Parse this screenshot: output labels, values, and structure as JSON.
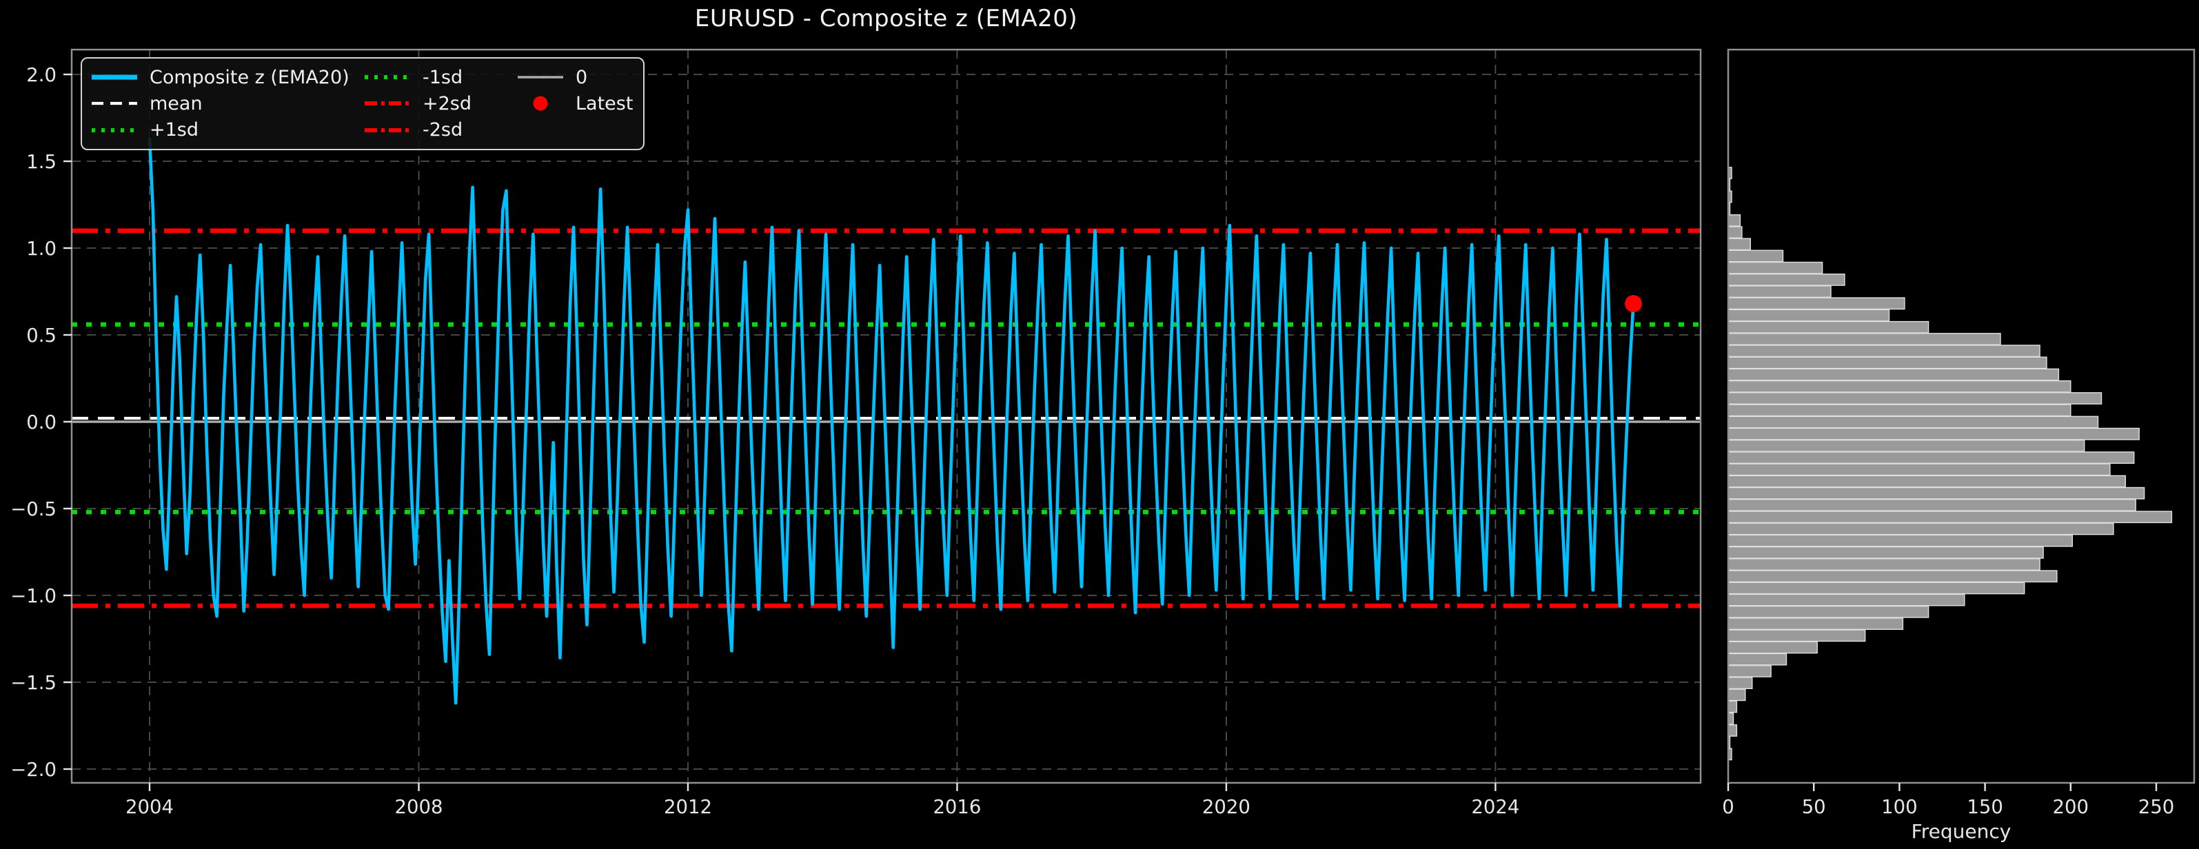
{
  "title": "EURUSD - Composite z (EMA20)",
  "colors": {
    "background": "#000000",
    "series": "#00BFFF",
    "mean": "#FFFFFF",
    "sd1": "#00DC00",
    "sd2": "#FF0000",
    "zero": "#ABABAB",
    "latest": "#FF0000",
    "grid": "#4F4F4F",
    "spine": "#909090",
    "tick_text": "#E6E6E6",
    "hist_fill": "#9A9A9A",
    "hist_edge": "#DFDFDF"
  },
  "legend": {
    "items": [
      {
        "label": "Composite z (EMA20)",
        "style": "series"
      },
      {
        "label": "mean",
        "style": "mean"
      },
      {
        "label": "+1sd",
        "style": "sd1"
      },
      {
        "label": "-1sd",
        "style": "sd1"
      },
      {
        "label": "+2sd",
        "style": "sd2"
      },
      {
        "label": "-2sd",
        "style": "sd2"
      },
      {
        "label": "0",
        "style": "zero"
      },
      {
        "label": "Latest",
        "style": "latest"
      }
    ]
  },
  "chart_data": [
    {
      "type": "line",
      "name": "composite-z-series",
      "title": "EURUSD - Composite z (EMA20)",
      "xlabel": "",
      "ylabel": "",
      "xlim": [
        2002.84,
        2027.05
      ],
      "ylim": [
        -2.08,
        2.14
      ],
      "x_ticks": [
        2004,
        2008,
        2012,
        2016,
        2020,
        2024
      ],
      "y_ticks": [
        2.0,
        1.5,
        1.0,
        0.5,
        0.0,
        -0.5,
        -1.0,
        -1.5,
        -2.0
      ],
      "grid": true,
      "ref_lines": {
        "mean": 0.02,
        "plus1sd": 0.56,
        "minus1sd": -0.52,
        "plus2sd": 1.1,
        "minus2sd": -1.06,
        "zero": 0.0
      },
      "latest": {
        "x": 2026.05,
        "y": 0.68
      },
      "x_start": 2004.0,
      "x_step": 0.05,
      "values": [
        1.63,
        1.22,
        0.45,
        -0.18,
        -0.62,
        -0.85,
        -0.32,
        0.28,
        0.72,
        0.34,
        -0.25,
        -0.76,
        -0.42,
        0.18,
        0.62,
        0.96,
        0.5,
        -0.15,
        -0.66,
        -1.0,
        -1.12,
        -0.5,
        0.15,
        0.56,
        0.9,
        0.4,
        -0.12,
        -0.55,
        -1.09,
        -0.7,
        -0.15,
        0.4,
        0.78,
        1.02,
        0.46,
        0.0,
        -0.46,
        -0.88,
        -0.4,
        0.12,
        0.68,
        1.13,
        0.7,
        0.18,
        -0.35,
        -0.72,
        -1.0,
        -0.4,
        0.18,
        0.62,
        0.95,
        0.4,
        -0.14,
        -0.58,
        -0.9,
        -0.3,
        0.25,
        0.7,
        1.07,
        0.55,
        0.02,
        -0.52,
        -0.95,
        -0.46,
        0.08,
        0.55,
        0.98,
        0.44,
        -0.1,
        -0.6,
        -1.0,
        -1.08,
        -0.45,
        0.12,
        0.6,
        1.03,
        0.54,
        0.0,
        -0.48,
        -0.82,
        -0.28,
        0.3,
        0.82,
        1.08,
        0.4,
        -0.2,
        -0.7,
        -1.1,
        -1.38,
        -0.8,
        -1.25,
        -1.62,
        -1.02,
        -0.3,
        0.4,
        0.95,
        1.35,
        0.72,
        0.05,
        -0.6,
        -1.05,
        -1.34,
        -0.6,
        0.12,
        0.78,
        1.22,
        1.33,
        0.66,
        0.02,
        -0.62,
        -1.02,
        -0.5,
        0.08,
        0.68,
        1.08,
        0.46,
        -0.12,
        -0.7,
        -1.12,
        -0.6,
        -0.12,
        -0.85,
        -1.36,
        -0.7,
        0.0,
        0.68,
        1.12,
        0.5,
        -0.18,
        -0.8,
        -1.17,
        -0.5,
        0.18,
        0.82,
        1.34,
        0.76,
        0.12,
        -0.52,
        -0.98,
        -0.46,
        0.12,
        0.68,
        1.12,
        0.56,
        -0.04,
        -0.58,
        -1.05,
        -1.27,
        -0.6,
        0.06,
        0.62,
        1.02,
        0.4,
        -0.18,
        -0.72,
        -1.12,
        -0.54,
        0.06,
        0.58,
        1.0,
        1.22,
        0.6,
        0.02,
        -0.55,
        -1.0,
        -0.4,
        0.18,
        0.72,
        1.17,
        0.54,
        -0.04,
        -0.6,
        -1.05,
        -1.32,
        -0.66,
        -0.04,
        0.52,
        0.92,
        0.36,
        -0.2,
        -0.68,
        -1.08,
        -0.46,
        0.12,
        0.68,
        1.12,
        0.48,
        -0.08,
        -0.62,
        -1.03,
        -0.38,
        0.22,
        0.75,
        1.1,
        0.46,
        -0.12,
        -0.66,
        -1.05,
        -0.4,
        0.18,
        0.66,
        1.08,
        0.46,
        -0.1,
        -0.64,
        -1.08,
        -0.5,
        0.08,
        0.6,
        1.02,
        0.4,
        -0.16,
        -0.7,
        -1.12,
        -0.56,
        -0.02,
        0.48,
        0.9,
        0.3,
        -0.22,
        -0.75,
        -1.3,
        -0.66,
        -0.05,
        0.52,
        0.95,
        0.36,
        -0.18,
        -0.68,
        -1.08,
        -0.45,
        0.15,
        0.66,
        1.05,
        0.44,
        -0.12,
        -0.62,
        -1.0,
        -0.36,
        0.2,
        0.7,
        1.07,
        0.44,
        -0.15,
        -0.66,
        -1.03,
        -0.4,
        0.18,
        0.68,
        1.03,
        0.38,
        -0.18,
        -0.7,
        -1.08,
        -0.44,
        0.12,
        0.63,
        0.97,
        0.34,
        -0.2,
        -0.68,
        -1.03,
        -0.38,
        0.18,
        0.66,
        1.02,
        0.42,
        -0.12,
        -0.6,
        -0.98,
        -0.34,
        0.2,
        0.68,
        1.07,
        0.48,
        -0.06,
        -0.56,
        -0.95,
        -0.32,
        0.22,
        0.72,
        1.1,
        0.48,
        -0.08,
        -0.6,
        -1.0,
        -0.36,
        0.2,
        0.65,
        1.0,
        0.36,
        -0.2,
        -0.7,
        -1.1,
        -0.46,
        0.12,
        0.6,
        0.95,
        0.3,
        -0.25,
        -0.7,
        -1.05,
        -0.42,
        0.15,
        0.63,
        0.98,
        0.34,
        -0.18,
        -0.65,
        -1.0,
        -0.36,
        0.18,
        0.65,
        1.0,
        0.38,
        -0.15,
        -0.62,
        -0.97,
        -0.32,
        0.22,
        0.7,
        1.13,
        0.52,
        -0.08,
        -0.6,
        -1.02,
        -0.4,
        0.15,
        0.65,
        1.07,
        0.44,
        -0.12,
        -0.62,
        -1.02,
        -0.38,
        0.18,
        0.67,
        1.02,
        0.4,
        -0.18,
        -0.65,
        -1.02,
        -0.4,
        0.15,
        0.62,
        0.97,
        0.36,
        -0.15,
        -0.65,
        -1.02,
        -0.38,
        0.17,
        0.65,
        1.02,
        0.4,
        -0.12,
        -0.6,
        -0.97,
        -0.34,
        0.2,
        0.67,
        1.03,
        0.4,
        -0.15,
        -0.65,
        -1.02,
        -0.42,
        0.12,
        0.62,
        1.0,
        0.36,
        -0.18,
        -0.67,
        -1.03,
        -0.4,
        0.15,
        0.62,
        0.97,
        0.34,
        -0.2,
        -0.67,
        -1.02,
        -0.38,
        0.17,
        0.65,
        1.0,
        0.38,
        -0.15,
        -0.63,
        -1.0,
        -0.36,
        0.18,
        0.67,
        1.02,
        0.4,
        -0.12,
        -0.6,
        -0.97,
        -0.34,
        0.22,
        0.7,
        1.07,
        0.46,
        0.0,
        -0.58,
        -1.0,
        -0.36,
        0.18,
        0.65,
        1.02,
        0.4,
        -0.15,
        -0.63,
        -1.02,
        -0.4,
        0.15,
        0.65,
        1.0,
        0.38,
        -0.17,
        -0.62,
        -1.0,
        -0.4,
        0.15,
        0.68,
        1.08,
        0.54,
        0.0,
        -0.55,
        -0.97,
        -0.36,
        0.2,
        0.72,
        1.05,
        0.44,
        -0.18,
        -0.68,
        -1.06,
        -0.5,
        -0.05,
        0.35,
        0.68
      ]
    },
    {
      "type": "bar",
      "name": "z-distribution-histogram",
      "orientation": "horizontal",
      "xlabel": "Frequency",
      "x_ticks": [
        0,
        50,
        100,
        150,
        200,
        250
      ],
      "xlim": [
        0,
        272
      ],
      "grid": false,
      "bin_top": 1.465,
      "bin_width": 0.0683,
      "frequencies": [
        2,
        1,
        2,
        1,
        7,
        8,
        13,
        32,
        55,
        68,
        60,
        103,
        94,
        117,
        159,
        182,
        186,
        193,
        200,
        218,
        200,
        216,
        240,
        208,
        237,
        223,
        232,
        243,
        238,
        259,
        225,
        201,
        184,
        182,
        192,
        173,
        138,
        117,
        102,
        80,
        52,
        34,
        25,
        14,
        10,
        5,
        3,
        5,
        1,
        2
      ]
    }
  ]
}
